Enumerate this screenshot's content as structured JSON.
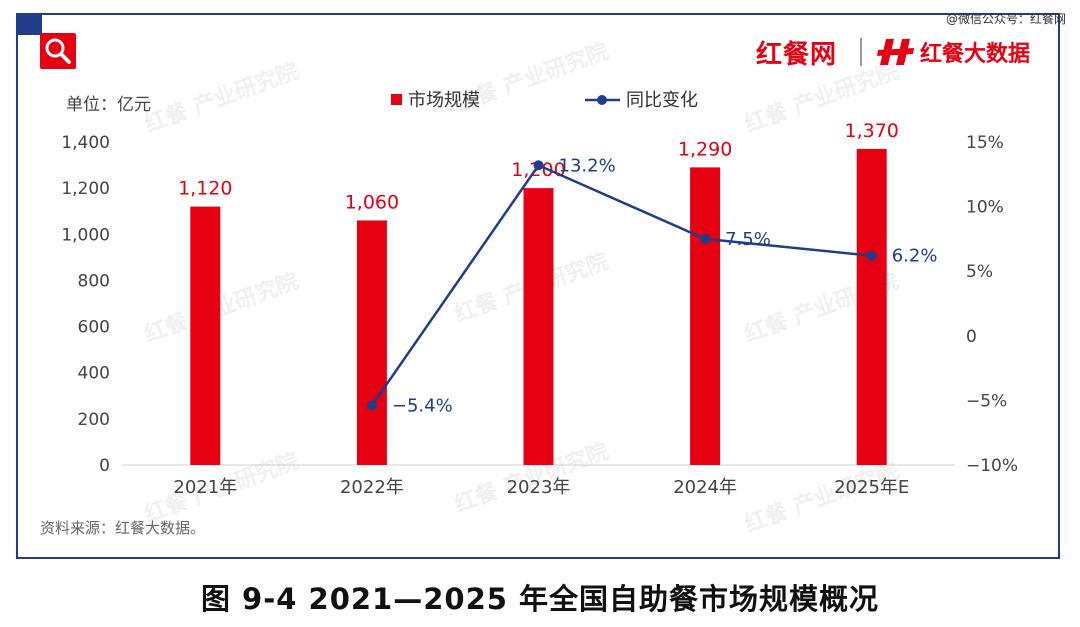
{
  "header": {
    "top_right_text": "@微信公众号：红餐网",
    "brand_left": "红餐网",
    "brand_right": "红餐大数据"
  },
  "watermark": "红餐 产业研究院",
  "unit_label": "单位：亿元",
  "source": "资料来源：红餐大数据。",
  "caption": "图 9-4    2021—2025 年全国自助餐市场规模概况",
  "colors": {
    "bar": "#e60012",
    "line": "#1f3d8a",
    "frame": "#1f3d8a"
  },
  "chart_data": {
    "type": "bar",
    "categories": [
      "2021年",
      "2022年",
      "2023年",
      "2024年",
      "2025年E"
    ],
    "series": [
      {
        "name": "市场规模",
        "type": "bar",
        "axis": "left",
        "values": [
          1120,
          1060,
          1200,
          1290,
          1370
        ],
        "labels": [
          "1,120",
          "1,060",
          "1,200",
          "1,290",
          "1,370"
        ]
      },
      {
        "name": "同比变化",
        "type": "line",
        "axis": "right",
        "values": [
          null,
          -5.4,
          13.2,
          7.5,
          6.2
        ],
        "labels": [
          "",
          "−5.4%",
          "13.2%",
          "7.5%",
          "6.2%"
        ]
      }
    ],
    "y_left": {
      "lim": [
        0,
        1400
      ],
      "ticks": [
        0,
        200,
        400,
        600,
        800,
        1000,
        1200,
        1400
      ],
      "tick_labels": [
        "0",
        "200",
        "400",
        "600",
        "800",
        "1,000",
        "1,200",
        "1,400"
      ]
    },
    "y_right": {
      "lim": [
        -10,
        15
      ],
      "ticks": [
        -10,
        -5,
        0,
        5,
        10,
        15
      ],
      "tick_labels": [
        "−10%",
        "−5%",
        "0",
        "5%",
        "10%",
        "15%"
      ]
    },
    "legend_position": "top-center",
    "grid": false
  }
}
